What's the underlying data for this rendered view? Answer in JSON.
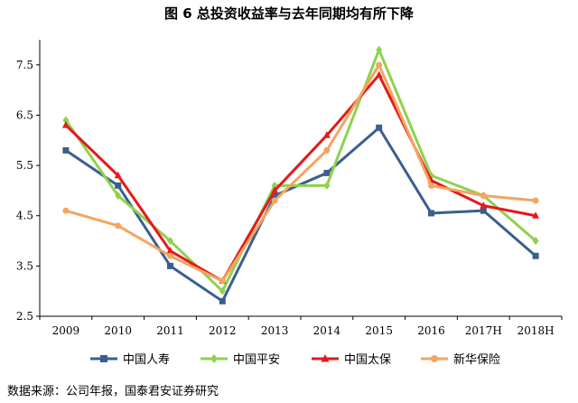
{
  "title": "图 6  总投资收益率与去年同期均有所下降",
  "source": "数据来源：公司年报，国泰君安证券研究",
  "chart_data": {
    "type": "line",
    "categories": [
      "2009",
      "2010",
      "2011",
      "2012",
      "2013",
      "2014",
      "2015",
      "2016",
      "2017H",
      "2018H"
    ],
    "ylim": [
      2.5,
      8.0
    ],
    "yticks": [
      2.5,
      3.5,
      4.5,
      5.5,
      6.5,
      7.5
    ],
    "ytick_labels": [
      "2.5",
      "3.5",
      "4.5",
      "5.5",
      "6.5",
      "7.5"
    ],
    "grid": false,
    "legend_position": "bottom",
    "series": [
      {
        "name": "中国人寿",
        "color": "#3a5f8f",
        "marker": "square",
        "values": [
          5.8,
          5.1,
          3.5,
          2.8,
          4.9,
          5.35,
          6.25,
          4.55,
          4.6,
          3.7
        ]
      },
      {
        "name": "中国平安",
        "color": "#8fd14f",
        "marker": "diamond",
        "values": [
          6.4,
          4.9,
          4.0,
          3.0,
          5.1,
          5.1,
          7.8,
          5.3,
          4.9,
          4.0
        ]
      },
      {
        "name": "中国太保",
        "color": "#e31a1c",
        "marker": "triangle",
        "values": [
          6.3,
          5.3,
          3.8,
          3.2,
          5.0,
          6.1,
          7.3,
          5.2,
          4.7,
          4.5
        ]
      },
      {
        "name": "新华保险",
        "color": "#f4a460",
        "marker": "circle",
        "values": [
          4.6,
          4.3,
          3.7,
          3.2,
          4.8,
          5.8,
          7.5,
          5.1,
          4.9,
          4.8
        ]
      }
    ]
  }
}
